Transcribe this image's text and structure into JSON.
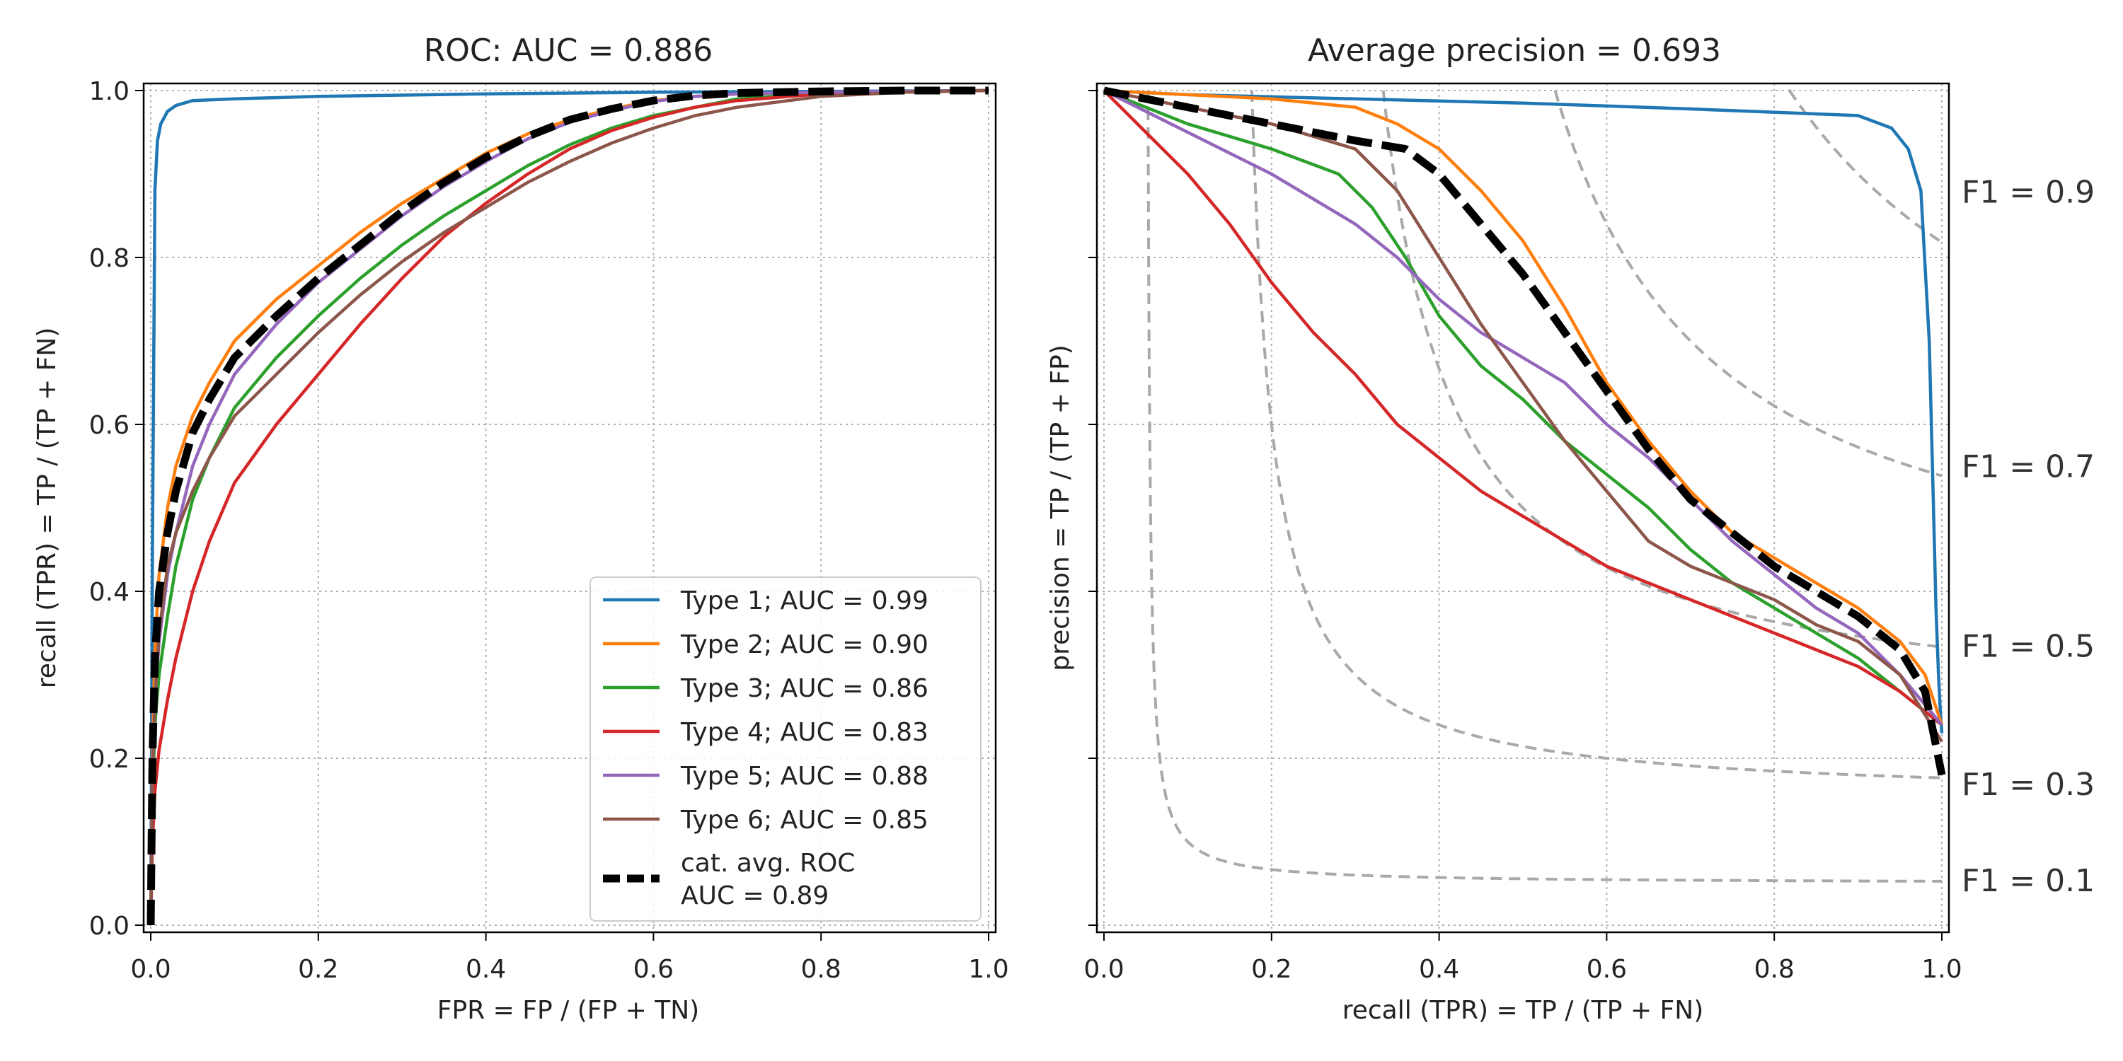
{
  "chart_data": [
    {
      "type": "line",
      "title": "ROC: AUC = 0.886",
      "xlabel": "FPR = FP / (FP + TN)",
      "ylabel": "recall (TPR) = TP / (TP + FN)",
      "xlim": [
        0,
        1
      ],
      "ylim": [
        0,
        1
      ],
      "xticks": [
        "0.0",
        "0.2",
        "0.4",
        "0.6",
        "0.8",
        "1.0"
      ],
      "yticks": [
        "0.0",
        "0.2",
        "0.4",
        "0.6",
        "0.8",
        "1.0"
      ],
      "grid": true,
      "legend_position": "lower-right",
      "series": [
        {
          "name": "Type 1; AUC = 0.99",
          "color": "#1f77b4",
          "x": [
            0,
            0.002,
            0.005,
            0.008,
            0.012,
            0.02,
            0.03,
            0.05,
            0.1,
            0.2,
            0.4,
            0.6,
            0.8,
            1.0
          ],
          "y": [
            0,
            0.45,
            0.88,
            0.94,
            0.96,
            0.975,
            0.982,
            0.988,
            0.99,
            0.993,
            0.996,
            0.998,
            0.999,
            1.0
          ]
        },
        {
          "name": "Type 2; AUC = 0.90",
          "color": "#ff7f0e",
          "x": [
            0,
            0.002,
            0.005,
            0.01,
            0.02,
            0.03,
            0.05,
            0.07,
            0.1,
            0.15,
            0.2,
            0.25,
            0.3,
            0.35,
            0.4,
            0.45,
            0.5,
            0.55,
            0.6,
            0.65,
            0.7,
            0.8,
            0.9,
            1.0
          ],
          "y": [
            0,
            0.2,
            0.33,
            0.42,
            0.5,
            0.55,
            0.61,
            0.65,
            0.7,
            0.75,
            0.79,
            0.83,
            0.865,
            0.895,
            0.925,
            0.948,
            0.965,
            0.978,
            0.988,
            0.993,
            0.996,
            0.998,
            0.999,
            1.0
          ]
        },
        {
          "name": "Type 3; AUC = 0.86",
          "color": "#2ca02c",
          "x": [
            0,
            0.002,
            0.005,
            0.01,
            0.02,
            0.03,
            0.05,
            0.07,
            0.1,
            0.15,
            0.2,
            0.25,
            0.3,
            0.35,
            0.4,
            0.45,
            0.5,
            0.55,
            0.6,
            0.65,
            0.7,
            0.8,
            0.9,
            1.0
          ],
          "y": [
            0,
            0.15,
            0.24,
            0.3,
            0.37,
            0.43,
            0.51,
            0.56,
            0.62,
            0.68,
            0.73,
            0.775,
            0.815,
            0.85,
            0.88,
            0.91,
            0.935,
            0.955,
            0.97,
            0.98,
            0.99,
            0.997,
            0.999,
            1.0
          ]
        },
        {
          "name": "Type 4; AUC = 0.83",
          "color": "#d62728",
          "x": [
            0,
            0.002,
            0.005,
            0.01,
            0.02,
            0.03,
            0.05,
            0.07,
            0.1,
            0.15,
            0.2,
            0.25,
            0.3,
            0.35,
            0.4,
            0.45,
            0.5,
            0.55,
            0.6,
            0.65,
            0.7,
            0.8,
            0.9,
            1.0
          ],
          "y": [
            0,
            0.1,
            0.16,
            0.21,
            0.27,
            0.32,
            0.4,
            0.46,
            0.53,
            0.6,
            0.66,
            0.72,
            0.775,
            0.825,
            0.865,
            0.9,
            0.93,
            0.952,
            0.968,
            0.98,
            0.988,
            0.996,
            0.999,
            1.0
          ]
        },
        {
          "name": "Type 5; AUC = 0.88",
          "color": "#9467bd",
          "x": [
            0,
            0.002,
            0.005,
            0.01,
            0.02,
            0.03,
            0.05,
            0.07,
            0.1,
            0.15,
            0.2,
            0.25,
            0.3,
            0.35,
            0.4,
            0.45,
            0.5,
            0.55,
            0.6,
            0.65,
            0.7,
            0.8,
            0.9,
            1.0
          ],
          "y": [
            0,
            0.18,
            0.27,
            0.34,
            0.42,
            0.47,
            0.55,
            0.6,
            0.66,
            0.72,
            0.77,
            0.81,
            0.85,
            0.885,
            0.915,
            0.942,
            0.962,
            0.976,
            0.987,
            0.993,
            0.996,
            0.998,
            0.999,
            1.0
          ]
        },
        {
          "name": "Type 6; AUC = 0.85",
          "color": "#8c564b",
          "x": [
            0,
            0.002,
            0.005,
            0.01,
            0.02,
            0.03,
            0.05,
            0.07,
            0.1,
            0.15,
            0.2,
            0.25,
            0.3,
            0.35,
            0.4,
            0.45,
            0.5,
            0.55,
            0.6,
            0.65,
            0.7,
            0.8,
            0.9,
            1.0
          ],
          "y": [
            0,
            0.17,
            0.27,
            0.35,
            0.43,
            0.47,
            0.52,
            0.56,
            0.61,
            0.66,
            0.71,
            0.755,
            0.795,
            0.83,
            0.86,
            0.89,
            0.915,
            0.937,
            0.955,
            0.97,
            0.98,
            0.993,
            0.998,
            1.0
          ]
        },
        {
          "name": "cat. avg. ROC\nAUC = 0.89",
          "color": "#000000",
          "dashed": true,
          "width": "thick",
          "x": [
            0,
            0.002,
            0.005,
            0.01,
            0.02,
            0.03,
            0.05,
            0.07,
            0.1,
            0.15,
            0.2,
            0.25,
            0.3,
            0.35,
            0.4,
            0.45,
            0.5,
            0.55,
            0.6,
            0.65,
            0.7,
            0.8,
            0.9,
            1.0
          ],
          "y": [
            0,
            0.2,
            0.32,
            0.4,
            0.47,
            0.52,
            0.59,
            0.63,
            0.68,
            0.73,
            0.775,
            0.815,
            0.855,
            0.89,
            0.92,
            0.945,
            0.965,
            0.978,
            0.988,
            0.994,
            0.997,
            0.999,
            1.0,
            1.0
          ]
        }
      ]
    },
    {
      "type": "line",
      "title": "Average precision = 0.693",
      "xlabel": "recall (TPR) = TP / (TP + FN)",
      "ylabel": "precision = TP / (TP + FP)",
      "xlim": [
        0,
        1
      ],
      "ylim": [
        0,
        1
      ],
      "xticks": [
        "0.0",
        "0.2",
        "0.4",
        "0.6",
        "0.8",
        "1.0"
      ],
      "grid": true,
      "f1_isolines": [
        0.1,
        0.3,
        0.5,
        0.7,
        0.9
      ],
      "f1_labels": [
        "F1 = 0.9",
        "F1 = 0.7",
        "F1 = 0.5",
        "F1 = 0.3",
        "F1 = 0.1"
      ],
      "series": [
        {
          "name": "Type 1",
          "color": "#1f77b4",
          "x": [
            0,
            0.1,
            0.3,
            0.5,
            0.7,
            0.9,
            0.94,
            0.96,
            0.975,
            0.985,
            0.99,
            0.993,
            0.996,
            0.998,
            1.0
          ],
          "y": [
            1.0,
            0.995,
            0.99,
            0.985,
            0.978,
            0.97,
            0.955,
            0.93,
            0.88,
            0.7,
            0.5,
            0.38,
            0.3,
            0.26,
            0.23
          ]
        },
        {
          "name": "Type 2",
          "color": "#ff7f0e",
          "x": [
            0,
            0.1,
            0.2,
            0.3,
            0.35,
            0.4,
            0.45,
            0.5,
            0.55,
            0.6,
            0.65,
            0.7,
            0.75,
            0.8,
            0.85,
            0.9,
            0.95,
            0.98,
            1.0
          ],
          "y": [
            1.0,
            0.995,
            0.99,
            0.98,
            0.96,
            0.93,
            0.88,
            0.82,
            0.74,
            0.65,
            0.58,
            0.52,
            0.47,
            0.44,
            0.41,
            0.38,
            0.34,
            0.3,
            0.24
          ]
        },
        {
          "name": "Type 3",
          "color": "#2ca02c",
          "x": [
            0,
            0.05,
            0.1,
            0.2,
            0.28,
            0.32,
            0.36,
            0.4,
            0.45,
            0.5,
            0.55,
            0.6,
            0.65,
            0.7,
            0.75,
            0.8,
            0.85,
            0.9,
            0.95,
            1.0
          ],
          "y": [
            1.0,
            0.98,
            0.96,
            0.93,
            0.9,
            0.86,
            0.8,
            0.73,
            0.67,
            0.63,
            0.58,
            0.54,
            0.5,
            0.45,
            0.41,
            0.38,
            0.35,
            0.32,
            0.28,
            0.24
          ]
        },
        {
          "name": "Type 4",
          "color": "#d62728",
          "x": [
            0,
            0.05,
            0.1,
            0.15,
            0.2,
            0.25,
            0.3,
            0.35,
            0.4,
            0.45,
            0.5,
            0.55,
            0.6,
            0.65,
            0.7,
            0.75,
            0.8,
            0.85,
            0.9,
            0.95,
            1.0
          ],
          "y": [
            1.0,
            0.95,
            0.9,
            0.84,
            0.77,
            0.71,
            0.66,
            0.6,
            0.56,
            0.52,
            0.49,
            0.46,
            0.43,
            0.41,
            0.39,
            0.37,
            0.35,
            0.33,
            0.31,
            0.28,
            0.24
          ]
        },
        {
          "name": "Type 5",
          "color": "#9467bd",
          "x": [
            0,
            0.05,
            0.1,
            0.2,
            0.3,
            0.35,
            0.4,
            0.45,
            0.5,
            0.55,
            0.6,
            0.65,
            0.7,
            0.75,
            0.8,
            0.85,
            0.9,
            0.95,
            1.0
          ],
          "y": [
            1.0,
            0.975,
            0.95,
            0.9,
            0.84,
            0.8,
            0.75,
            0.71,
            0.68,
            0.65,
            0.6,
            0.56,
            0.51,
            0.46,
            0.42,
            0.38,
            0.35,
            0.3,
            0.24
          ]
        },
        {
          "name": "Type 6",
          "color": "#8c564b",
          "x": [
            0,
            0.05,
            0.1,
            0.2,
            0.3,
            0.35,
            0.4,
            0.45,
            0.5,
            0.55,
            0.6,
            0.65,
            0.7,
            0.75,
            0.8,
            0.85,
            0.9,
            0.95,
            1.0
          ],
          "y": [
            1.0,
            0.99,
            0.98,
            0.96,
            0.93,
            0.88,
            0.8,
            0.72,
            0.65,
            0.58,
            0.52,
            0.46,
            0.43,
            0.41,
            0.39,
            0.36,
            0.34,
            0.3,
            0.22
          ]
        },
        {
          "name": "cat. avg.",
          "color": "#000000",
          "dashed": true,
          "width": "thick",
          "x": [
            0,
            0.05,
            0.1,
            0.2,
            0.3,
            0.36,
            0.4,
            0.45,
            0.5,
            0.55,
            0.6,
            0.65,
            0.7,
            0.75,
            0.8,
            0.85,
            0.9,
            0.95,
            0.98,
            1.0
          ],
          "y": [
            1.0,
            0.99,
            0.98,
            0.96,
            0.94,
            0.93,
            0.9,
            0.84,
            0.78,
            0.71,
            0.64,
            0.57,
            0.51,
            0.47,
            0.43,
            0.4,
            0.37,
            0.33,
            0.28,
            0.18
          ]
        }
      ]
    }
  ]
}
